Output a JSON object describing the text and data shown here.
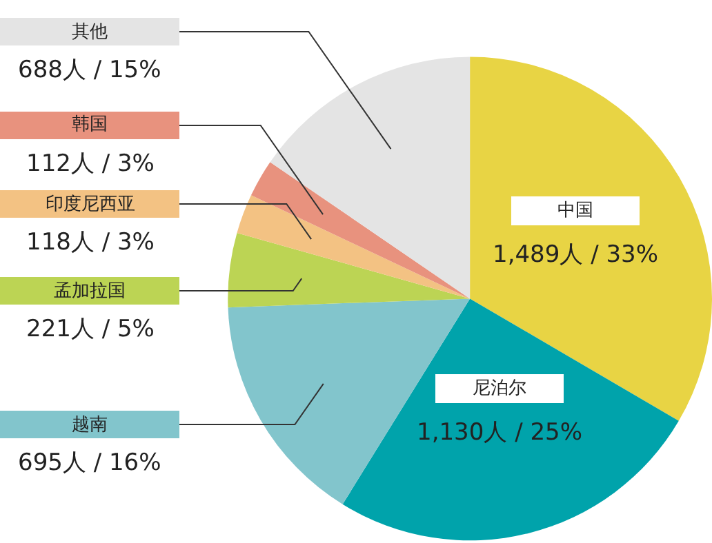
{
  "chart_data": {
    "type": "pie",
    "categories": [
      "中国",
      "尼泊尔",
      "越南",
      "孟加拉国",
      "印度尼西亚",
      "韩国",
      "其他"
    ],
    "values": [
      1489,
      1130,
      695,
      221,
      118,
      112,
      688
    ],
    "colors": [
      "#e8d444",
      "#00a3ab",
      "#82c5cc",
      "#bcd454",
      "#f3c283",
      "#e8927e",
      "#e4e4e4"
    ],
    "value_labels": [
      "1,489人 / 33%",
      "1,130人 / 25%",
      "695人 / 16%",
      "221人 / 5%",
      "118人 / 3%",
      "112人 / 3%",
      "688人 / 15%"
    ],
    "legend": "left"
  }
}
